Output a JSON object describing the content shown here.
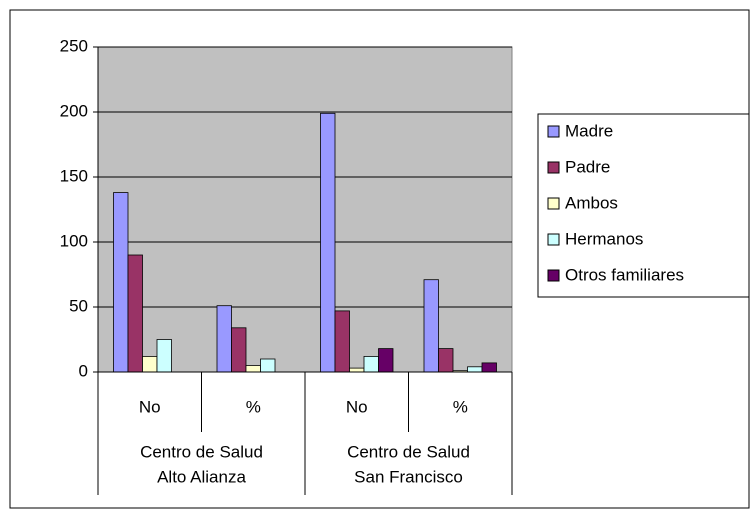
{
  "chart_data": {
    "type": "bar",
    "categories": [
      "No",
      "%",
      "No",
      "%"
    ],
    "groups": [
      {
        "lines": [
          "Centro de Salud",
          "Alto Alianza"
        ],
        "span": 2
      },
      {
        "lines": [
          "Centro de Salud",
          "San Francisco"
        ],
        "span": 2
      }
    ],
    "series": [
      {
        "name": "Madre",
        "color": "#9999ff",
        "values": [
          138,
          51,
          199,
          71
        ]
      },
      {
        "name": "Padre",
        "color": "#993366",
        "values": [
          90,
          34,
          47,
          18
        ]
      },
      {
        "name": "Ambos",
        "color": "#ffffcc",
        "values": [
          12,
          5,
          3,
          1
        ]
      },
      {
        "name": "Hermanos",
        "color": "#ccffff",
        "values": [
          25,
          10,
          12,
          4
        ]
      },
      {
        "name": "Otros familiares",
        "color": "#660066",
        "values": [
          0,
          0,
          18,
          7
        ]
      }
    ],
    "ylim": [
      0,
      250
    ],
    "yticks": [
      0,
      50,
      100,
      150,
      200,
      250
    ],
    "grid": true,
    "plot_background": "#c0c0c0",
    "legend": "right"
  }
}
